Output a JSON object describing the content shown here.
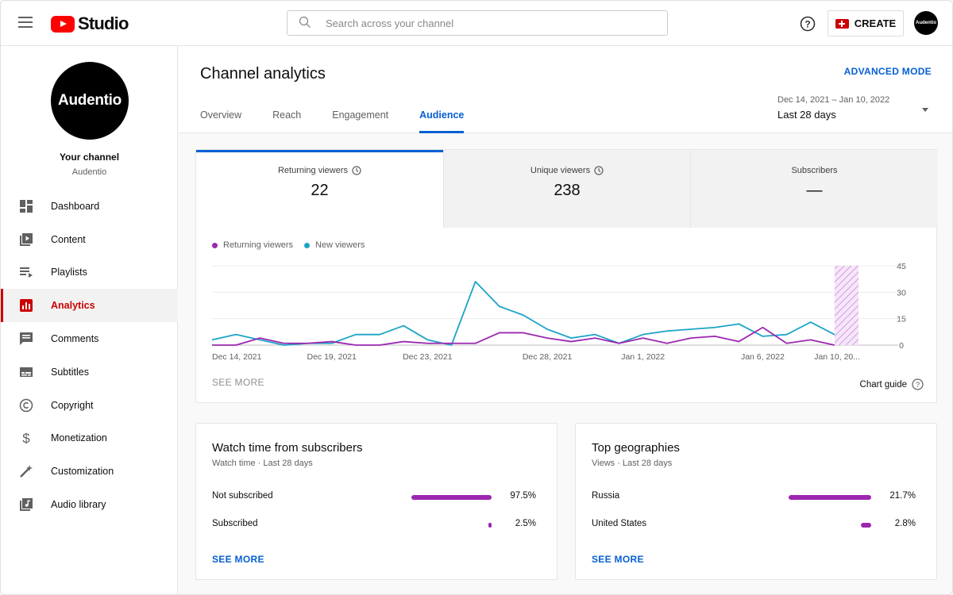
{
  "header": {
    "logo_text": "Studio",
    "search_placeholder": "Search across your channel",
    "create_label": "CREATE",
    "avatar_text": "Audentio"
  },
  "sidebar": {
    "avatar_text": "Audentio",
    "your_channel": "Your channel",
    "channel_name": "Audentio",
    "items": [
      {
        "label": "Dashboard",
        "icon": "dashboard-icon"
      },
      {
        "label": "Content",
        "icon": "content-icon"
      },
      {
        "label": "Playlists",
        "icon": "playlists-icon"
      },
      {
        "label": "Analytics",
        "icon": "analytics-icon",
        "active": true
      },
      {
        "label": "Comments",
        "icon": "comments-icon"
      },
      {
        "label": "Subtitles",
        "icon": "subtitles-icon"
      },
      {
        "label": "Copyright",
        "icon": "copyright-icon"
      },
      {
        "label": "Monetization",
        "icon": "monetization-icon"
      },
      {
        "label": "Customization",
        "icon": "customization-icon"
      },
      {
        "label": "Audio library",
        "icon": "audio-library-icon"
      }
    ]
  },
  "main": {
    "title": "Channel analytics",
    "advanced_mode": "ADVANCED MODE",
    "tabs": [
      {
        "label": "Overview"
      },
      {
        "label": "Reach"
      },
      {
        "label": "Engagement"
      },
      {
        "label": "Audience",
        "active": true
      }
    ],
    "date_range": {
      "dates": "Dec 14, 2021 – Jan 10, 2022",
      "label": "Last 28 days"
    }
  },
  "metrics": [
    {
      "label": "Returning viewers",
      "value": "22",
      "has_info": true
    },
    {
      "label": "Unique viewers",
      "value": "238",
      "has_info": true
    },
    {
      "label": "Subscribers",
      "value": "—",
      "has_info": false
    }
  ],
  "chart_data": {
    "type": "line",
    "series": [
      {
        "name": "Returning viewers",
        "color": "#9c27b0",
        "values": [
          0,
          0,
          4,
          1,
          1,
          2,
          0,
          0,
          2,
          1,
          1,
          1,
          7,
          7,
          4,
          2,
          4,
          1,
          4,
          1,
          4,
          5,
          2,
          10,
          1,
          3,
          0
        ]
      },
      {
        "name": "New viewers",
        "color": "#1ca4c8",
        "values": [
          3,
          6,
          3,
          0,
          1,
          1,
          6,
          6,
          11,
          3,
          0,
          36,
          22,
          17,
          9,
          4,
          6,
          1,
          6,
          8,
          9,
          10,
          12,
          5,
          6,
          13,
          6
        ]
      }
    ],
    "x_tick_labels": [
      {
        "label": "Dec 14, 2021",
        "index": 0
      },
      {
        "label": "Dec 19, 2021",
        "index": 5
      },
      {
        "label": "Dec 23, 2021",
        "index": 9
      },
      {
        "label": "Dec 28, 2021",
        "index": 14
      },
      {
        "label": "Jan 1, 2022",
        "index": 18
      },
      {
        "label": "Jan 6, 2022",
        "index": 23
      },
      {
        "label": "Jan 10, 20...",
        "index": 27
      }
    ],
    "y_ticks": [
      "45",
      "30",
      "15",
      "0"
    ],
    "ylim": [
      0,
      45
    ],
    "legend_position": "top-left",
    "grid": true
  },
  "chart_footer": {
    "see_more": "SEE MORE",
    "chart_guide": "Chart guide"
  },
  "watch_time": {
    "title": "Watch time from subscribers",
    "subtitle": "Watch time · Last 28 days",
    "rows": [
      {
        "label": "Not subscribed",
        "value": "97.5%",
        "fraction": 0.975
      },
      {
        "label": "Subscribed",
        "value": "2.5%",
        "fraction": 0.025
      }
    ],
    "see_more": "SEE MORE"
  },
  "geographies": {
    "title": "Top geographies",
    "subtitle": "Views · Last 28 days",
    "rows": [
      {
        "label": "Russia",
        "value": "21.7%",
        "fraction": 0.217
      },
      {
        "label": "United States",
        "value": "2.8%",
        "fraction": 0.028
      }
    ],
    "see_more": "SEE MORE"
  }
}
